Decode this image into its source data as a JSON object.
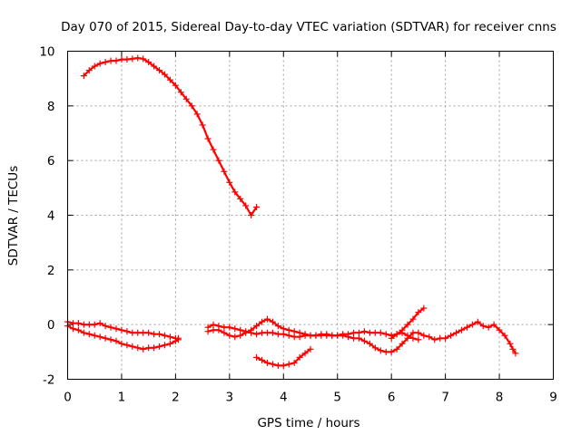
{
  "chart_data": {
    "type": "scatter",
    "title": "Day 070 of 2015, Sidereal Day-to-day VTEC variation (SDTVAR) for receiver cnns",
    "xlabel": "GPS time / hours",
    "ylabel": "SDTVAR / TECUs",
    "xlim": [
      0,
      9
    ],
    "ylim": [
      -2,
      10
    ],
    "xticks": [
      0,
      1,
      2,
      3,
      4,
      5,
      6,
      7,
      8,
      9
    ],
    "yticks": [
      -2,
      0,
      2,
      4,
      6,
      8,
      10
    ],
    "grid": true,
    "marker": "+",
    "color": "#ff0000",
    "series": [
      {
        "name": "track-1",
        "points": [
          [
            0.3,
            9.1
          ],
          [
            0.4,
            9.3
          ],
          [
            0.5,
            9.45
          ],
          [
            0.6,
            9.55
          ],
          [
            0.7,
            9.6
          ],
          [
            0.8,
            9.65
          ],
          [
            0.9,
            9.65
          ],
          [
            1.0,
            9.7
          ],
          [
            1.1,
            9.7
          ],
          [
            1.2,
            9.72
          ],
          [
            1.3,
            9.75
          ],
          [
            1.4,
            9.72
          ],
          [
            1.5,
            9.6
          ],
          [
            1.6,
            9.45
          ],
          [
            1.7,
            9.3
          ],
          [
            1.8,
            9.15
          ],
          [
            1.9,
            8.95
          ],
          [
            2.0,
            8.75
          ],
          [
            2.1,
            8.5
          ],
          [
            2.2,
            8.25
          ],
          [
            2.3,
            8.0
          ],
          [
            2.4,
            7.7
          ],
          [
            2.5,
            7.3
          ],
          [
            2.6,
            6.8
          ],
          [
            2.7,
            6.4
          ],
          [
            2.8,
            6.0
          ],
          [
            2.9,
            5.6
          ],
          [
            3.0,
            5.2
          ],
          [
            3.1,
            4.85
          ],
          [
            3.2,
            4.6
          ],
          [
            3.3,
            4.35
          ],
          [
            3.4,
            4.0
          ],
          [
            3.5,
            4.3
          ]
        ]
      },
      {
        "name": "track-2",
        "points": [
          [
            0.0,
            -0.05
          ],
          [
            0.1,
            -0.15
          ],
          [
            0.2,
            -0.2
          ],
          [
            0.3,
            -0.3
          ],
          [
            0.4,
            -0.35
          ],
          [
            0.5,
            -0.4
          ],
          [
            0.6,
            -0.45
          ],
          [
            0.7,
            -0.5
          ],
          [
            0.8,
            -0.55
          ],
          [
            0.9,
            -0.6
          ],
          [
            1.0,
            -0.7
          ],
          [
            1.1,
            -0.75
          ],
          [
            1.2,
            -0.8
          ],
          [
            1.3,
            -0.85
          ],
          [
            1.4,
            -0.9
          ],
          [
            1.5,
            -0.85
          ],
          [
            1.6,
            -0.85
          ],
          [
            1.7,
            -0.8
          ],
          [
            1.8,
            -0.75
          ],
          [
            1.9,
            -0.7
          ],
          [
            2.0,
            -0.6
          ],
          [
            2.05,
            -0.5
          ]
        ]
      },
      {
        "name": "track-3",
        "points": [
          [
            0.0,
            0.1
          ],
          [
            0.1,
            0.05
          ],
          [
            0.2,
            0.05
          ],
          [
            0.3,
            0.0
          ],
          [
            0.4,
            0.0
          ],
          [
            0.5,
            0.0
          ],
          [
            0.6,
            0.05
          ],
          [
            0.7,
            -0.05
          ],
          [
            0.8,
            -0.1
          ],
          [
            0.9,
            -0.15
          ],
          [
            1.0,
            -0.2
          ],
          [
            1.1,
            -0.25
          ],
          [
            1.2,
            -0.3
          ],
          [
            1.3,
            -0.3
          ],
          [
            1.4,
            -0.3
          ],
          [
            1.5,
            -0.3
          ],
          [
            1.6,
            -0.35
          ],
          [
            1.7,
            -0.35
          ],
          [
            1.8,
            -0.4
          ],
          [
            1.9,
            -0.45
          ],
          [
            2.0,
            -0.5
          ],
          [
            2.05,
            -0.55
          ]
        ]
      },
      {
        "name": "track-4",
        "points": [
          [
            2.6,
            -0.1
          ],
          [
            2.7,
            0.0
          ],
          [
            2.8,
            -0.05
          ],
          [
            2.9,
            -0.1
          ],
          [
            3.0,
            -0.1
          ],
          [
            3.1,
            -0.15
          ],
          [
            3.2,
            -0.2
          ],
          [
            3.3,
            -0.25
          ],
          [
            3.4,
            -0.3
          ],
          [
            3.5,
            -0.35
          ],
          [
            3.6,
            -0.3
          ],
          [
            3.7,
            -0.3
          ],
          [
            3.8,
            -0.3
          ],
          [
            3.9,
            -0.35
          ],
          [
            4.0,
            -0.35
          ],
          [
            4.1,
            -0.4
          ],
          [
            4.2,
            -0.45
          ],
          [
            4.3,
            -0.45
          ],
          [
            4.4,
            -0.4
          ],
          [
            4.5,
            -0.4
          ],
          [
            4.6,
            -0.4
          ],
          [
            4.7,
            -0.35
          ],
          [
            4.8,
            -0.4
          ],
          [
            4.9,
            -0.4
          ],
          [
            5.0,
            -0.4
          ],
          [
            5.1,
            -0.35
          ],
          [
            5.2,
            -0.35
          ],
          [
            5.3,
            -0.3
          ],
          [
            5.4,
            -0.3
          ],
          [
            5.5,
            -0.25
          ],
          [
            5.6,
            -0.3
          ],
          [
            5.7,
            -0.3
          ],
          [
            5.8,
            -0.3
          ],
          [
            5.9,
            -0.35
          ],
          [
            6.0,
            -0.4
          ],
          [
            6.1,
            -0.35
          ],
          [
            6.2,
            -0.3
          ],
          [
            6.3,
            -0.4
          ],
          [
            6.4,
            -0.5
          ],
          [
            6.5,
            -0.55
          ]
        ]
      },
      {
        "name": "track-5",
        "points": [
          [
            2.6,
            -0.25
          ],
          [
            2.7,
            -0.2
          ],
          [
            2.8,
            -0.2
          ],
          [
            2.9,
            -0.3
          ],
          [
            3.0,
            -0.4
          ],
          [
            3.1,
            -0.45
          ],
          [
            3.2,
            -0.4
          ],
          [
            3.3,
            -0.3
          ],
          [
            3.4,
            -0.2
          ],
          [
            3.5,
            -0.05
          ],
          [
            3.6,
            0.1
          ],
          [
            3.7,
            0.2
          ],
          [
            3.8,
            0.1
          ],
          [
            3.9,
            -0.05
          ],
          [
            4.0,
            -0.15
          ],
          [
            4.1,
            -0.2
          ],
          [
            4.2,
            -0.25
          ],
          [
            4.3,
            -0.3
          ],
          [
            4.4,
            -0.35
          ],
          [
            4.5,
            -0.4
          ],
          [
            4.6,
            -0.4
          ],
          [
            4.7,
            -0.4
          ],
          [
            4.8,
            -0.35
          ],
          [
            4.9,
            -0.4
          ],
          [
            5.0,
            -0.4
          ],
          [
            5.1,
            -0.4
          ],
          [
            5.2,
            -0.45
          ],
          [
            5.3,
            -0.5
          ],
          [
            5.4,
            -0.5
          ],
          [
            5.5,
            -0.6
          ],
          [
            5.6,
            -0.7
          ],
          [
            5.7,
            -0.85
          ],
          [
            5.8,
            -0.95
          ],
          [
            5.9,
            -1.0
          ],
          [
            6.0,
            -1.0
          ],
          [
            6.1,
            -0.9
          ],
          [
            6.2,
            -0.7
          ],
          [
            6.3,
            -0.5
          ],
          [
            6.4,
            -0.3
          ],
          [
            6.5,
            -0.3
          ],
          [
            6.6,
            -0.4
          ],
          [
            6.7,
            -0.45
          ],
          [
            6.8,
            -0.55
          ],
          [
            6.9,
            -0.5
          ],
          [
            7.0,
            -0.5
          ],
          [
            7.1,
            -0.4
          ],
          [
            7.2,
            -0.3
          ],
          [
            7.3,
            -0.2
          ],
          [
            7.4,
            -0.1
          ],
          [
            7.5,
            0.0
          ],
          [
            7.6,
            0.1
          ],
          [
            7.7,
            -0.05
          ],
          [
            7.8,
            -0.1
          ],
          [
            7.9,
            0.0
          ],
          [
            8.0,
            -0.2
          ],
          [
            8.1,
            -0.4
          ],
          [
            8.2,
            -0.7
          ],
          [
            8.25,
            -0.9
          ],
          [
            8.3,
            -1.05
          ]
        ]
      },
      {
        "name": "track-6",
        "points": [
          [
            3.5,
            -1.2
          ],
          [
            3.6,
            -1.3
          ],
          [
            3.7,
            -1.4
          ],
          [
            3.8,
            -1.45
          ],
          [
            3.9,
            -1.5
          ],
          [
            4.0,
            -1.5
          ],
          [
            4.1,
            -1.45
          ],
          [
            4.2,
            -1.4
          ],
          [
            4.3,
            -1.2
          ],
          [
            4.4,
            -1.05
          ],
          [
            4.5,
            -0.9
          ]
        ]
      },
      {
        "name": "track-7",
        "points": [
          [
            6.0,
            -0.5
          ],
          [
            6.1,
            -0.35
          ],
          [
            6.2,
            -0.2
          ],
          [
            6.3,
            0.0
          ],
          [
            6.4,
            0.2
          ],
          [
            6.5,
            0.45
          ],
          [
            6.6,
            0.6
          ]
        ]
      }
    ]
  }
}
